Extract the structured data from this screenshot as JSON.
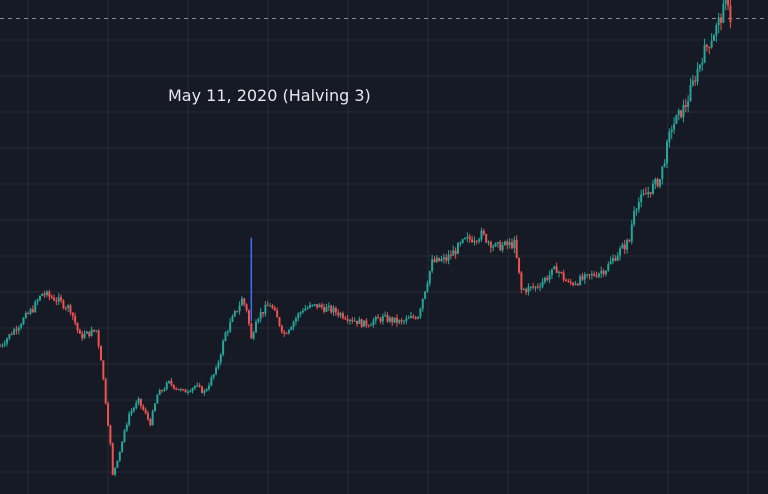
{
  "theme": {
    "background": "#161a25",
    "grid": "#262b38",
    "up": "#26a69a",
    "down": "#ef5350",
    "marker": "#3d6df2",
    "dashed": "#8a8f9a"
  },
  "annotation": {
    "label": "May 11, 2020 (Halving 3)",
    "date": "2020-05-11",
    "marker_range": [
      9200,
      11900
    ]
  },
  "chart_data": {
    "type": "candlestick",
    "title": "",
    "xlabel": "",
    "ylabel": "",
    "x_range": [
      "2020-01-25",
      "2020-12-17"
    ],
    "y_range": [
      3600,
      19600
    ],
    "dashed_level": 19000,
    "grid": true,
    "anchors": [
      [
        "2020-01-25",
        8400
      ],
      [
        "2020-02-08",
        9600
      ],
      [
        "2020-02-12",
        10100
      ],
      [
        "2020-02-18",
        9900
      ],
      [
        "2020-02-24",
        9600
      ],
      [
        "2020-02-28",
        8700
      ],
      [
        "2020-03-06",
        8900
      ],
      [
        "2020-03-08",
        8000
      ],
      [
        "2020-03-12",
        5200
      ],
      [
        "2020-03-13",
        4200
      ],
      [
        "2020-03-16",
        5000
      ],
      [
        "2020-03-20",
        6200
      ],
      [
        "2020-03-24",
        6600
      ],
      [
        "2020-03-29",
        5900
      ],
      [
        "2020-04-01",
        6800
      ],
      [
        "2020-04-06",
        7200
      ],
      [
        "2020-04-12",
        6900
      ],
      [
        "2020-04-17",
        7100
      ],
      [
        "2020-04-21",
        6900
      ],
      [
        "2020-04-26",
        7600
      ],
      [
        "2020-04-30",
        8800
      ],
      [
        "2020-05-07",
        9900
      ],
      [
        "2020-05-09",
        9600
      ],
      [
        "2020-05-11",
        8600
      ],
      [
        "2020-05-13",
        9300
      ],
      [
        "2020-05-19",
        9750
      ],
      [
        "2020-05-25",
        8800
      ],
      [
        "2020-06-02",
        9600
      ],
      [
        "2020-06-08",
        9700
      ],
      [
        "2020-06-16",
        9500
      ],
      [
        "2020-06-22",
        9300
      ],
      [
        "2020-06-28",
        9100
      ],
      [
        "2020-07-06",
        9300
      ],
      [
        "2020-07-14",
        9150
      ],
      [
        "2020-07-21",
        9400
      ],
      [
        "2020-07-27",
        11100
      ],
      [
        "2020-08-02",
        11200
      ],
      [
        "2020-08-10",
        11800
      ],
      [
        "2020-08-17",
        12000
      ],
      [
        "2020-08-23",
        11600
      ],
      [
        "2020-08-31",
        11700
      ],
      [
        "2020-09-03",
        10200
      ],
      [
        "2020-09-09",
        10300
      ],
      [
        "2020-09-18",
        10900
      ],
      [
        "2020-09-23",
        10400
      ],
      [
        "2020-10-01",
        10600
      ],
      [
        "2020-10-09",
        10900
      ],
      [
        "2020-10-14",
        11400
      ],
      [
        "2020-10-19",
        11800
      ],
      [
        "2020-10-21",
        12900
      ],
      [
        "2020-11-01",
        13800
      ],
      [
        "2020-11-06",
        15500
      ],
      [
        "2020-11-12",
        16200
      ],
      [
        "2020-11-19",
        17800
      ],
      [
        "2020-11-25",
        18700
      ],
      [
        "2020-11-30",
        19600
      ],
      [
        "2020-12-01",
        19000
      ]
    ]
  }
}
